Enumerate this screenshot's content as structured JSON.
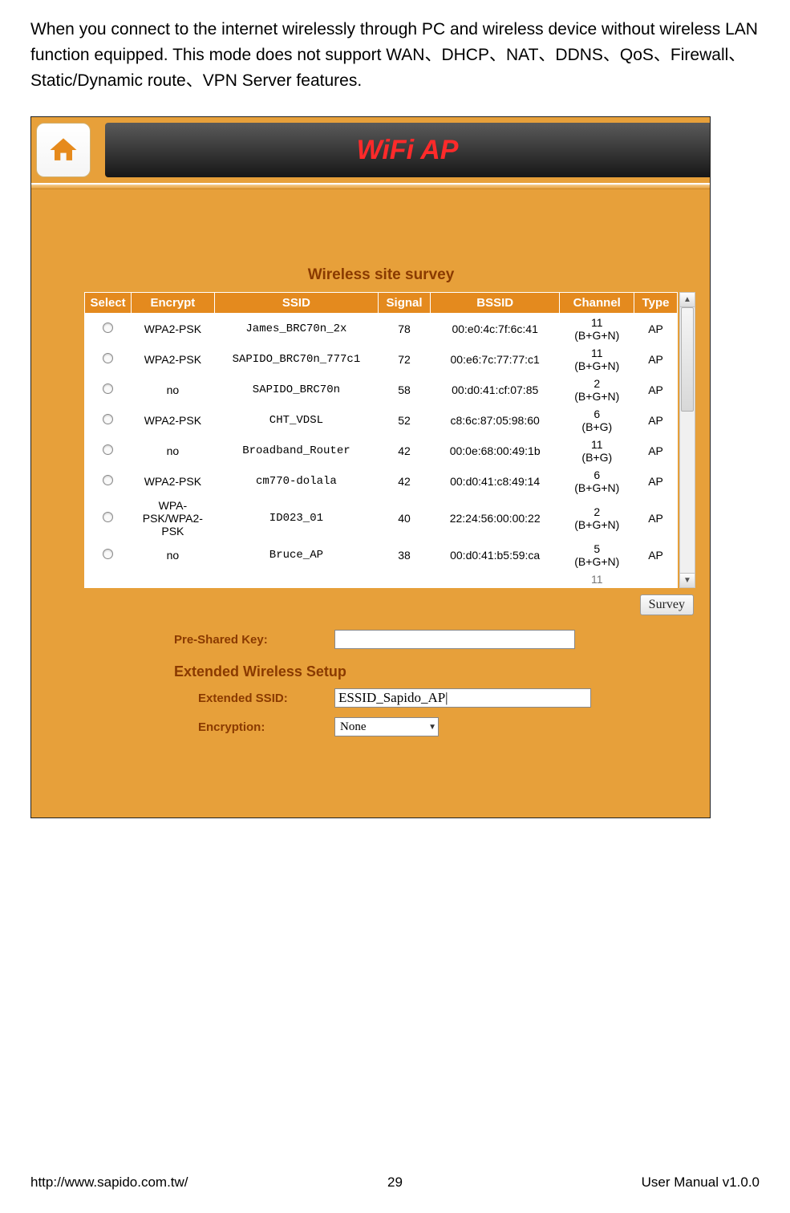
{
  "intro": "When you connect to the internet wirelessly through PC and wireless device without wireless LAN function equipped. This mode does not support WAN、DHCP、NAT、DDNS、QoS、Firewall、Static/Dynamic route、VPN Server features.",
  "banner_title": "WiFi AP",
  "survey_heading": "Wireless site survey",
  "columns": {
    "select": "Select",
    "encrypt": "Encrypt",
    "ssid": "SSID",
    "signal": "Signal",
    "bssid": "BSSID",
    "channel": "Channel",
    "type": "Type"
  },
  "rows": [
    {
      "encrypt": "WPA2-PSK",
      "ssid": "James_BRC70n_2x",
      "signal": "78",
      "bssid": "00:e0:4c:7f:6c:41",
      "channel": "11 (B+G+N)",
      "type": "AP"
    },
    {
      "encrypt": "WPA2-PSK",
      "ssid": "SAPIDO_BRC70n_777c1",
      "signal": "72",
      "bssid": "00:e6:7c:77:77:c1",
      "channel": "11 (B+G+N)",
      "type": "AP"
    },
    {
      "encrypt": "no",
      "ssid": "SAPIDO_BRC70n",
      "signal": "58",
      "bssid": "00:d0:41:cf:07:85",
      "channel": "2 (B+G+N)",
      "type": "AP"
    },
    {
      "encrypt": "WPA2-PSK",
      "ssid": "CHT_VDSL",
      "signal": "52",
      "bssid": "c8:6c:87:05:98:60",
      "channel": "6 (B+G)",
      "type": "AP"
    },
    {
      "encrypt": "no",
      "ssid": "Broadband_Router",
      "signal": "42",
      "bssid": "00:0e:68:00:49:1b",
      "channel": "11 (B+G)",
      "type": "AP"
    },
    {
      "encrypt": "WPA2-PSK",
      "ssid": "cm770-dolala",
      "signal": "42",
      "bssid": "00:d0:41:c8:49:14",
      "channel": "6 (B+G+N)",
      "type": "AP"
    },
    {
      "encrypt": "WPA-PSK/WPA2-PSK",
      "ssid": "ID023_01",
      "signal": "40",
      "bssid": "22:24:56:00:00:22",
      "channel": "2 (B+G+N)",
      "type": "AP"
    },
    {
      "encrypt": "no",
      "ssid": "Bruce_AP",
      "signal": "38",
      "bssid": "00:d0:41:b5:59:ca",
      "channel": "5 (B+G+N)",
      "type": "AP"
    }
  ],
  "partial_row": {
    "channel": "11"
  },
  "survey_button": "Survey",
  "psk_label": "Pre-Shared Key:",
  "psk_value": "",
  "ext_heading": "Extended Wireless Setup",
  "essid_label": "Extended SSID:",
  "essid_value": "ESSID_Sapido_AP|",
  "enc_label": "Encryption:",
  "enc_value": "None",
  "footer": {
    "url": "http://www.sapido.com.tw/",
    "page": "29",
    "right": "User  Manual  v1.0.0"
  }
}
